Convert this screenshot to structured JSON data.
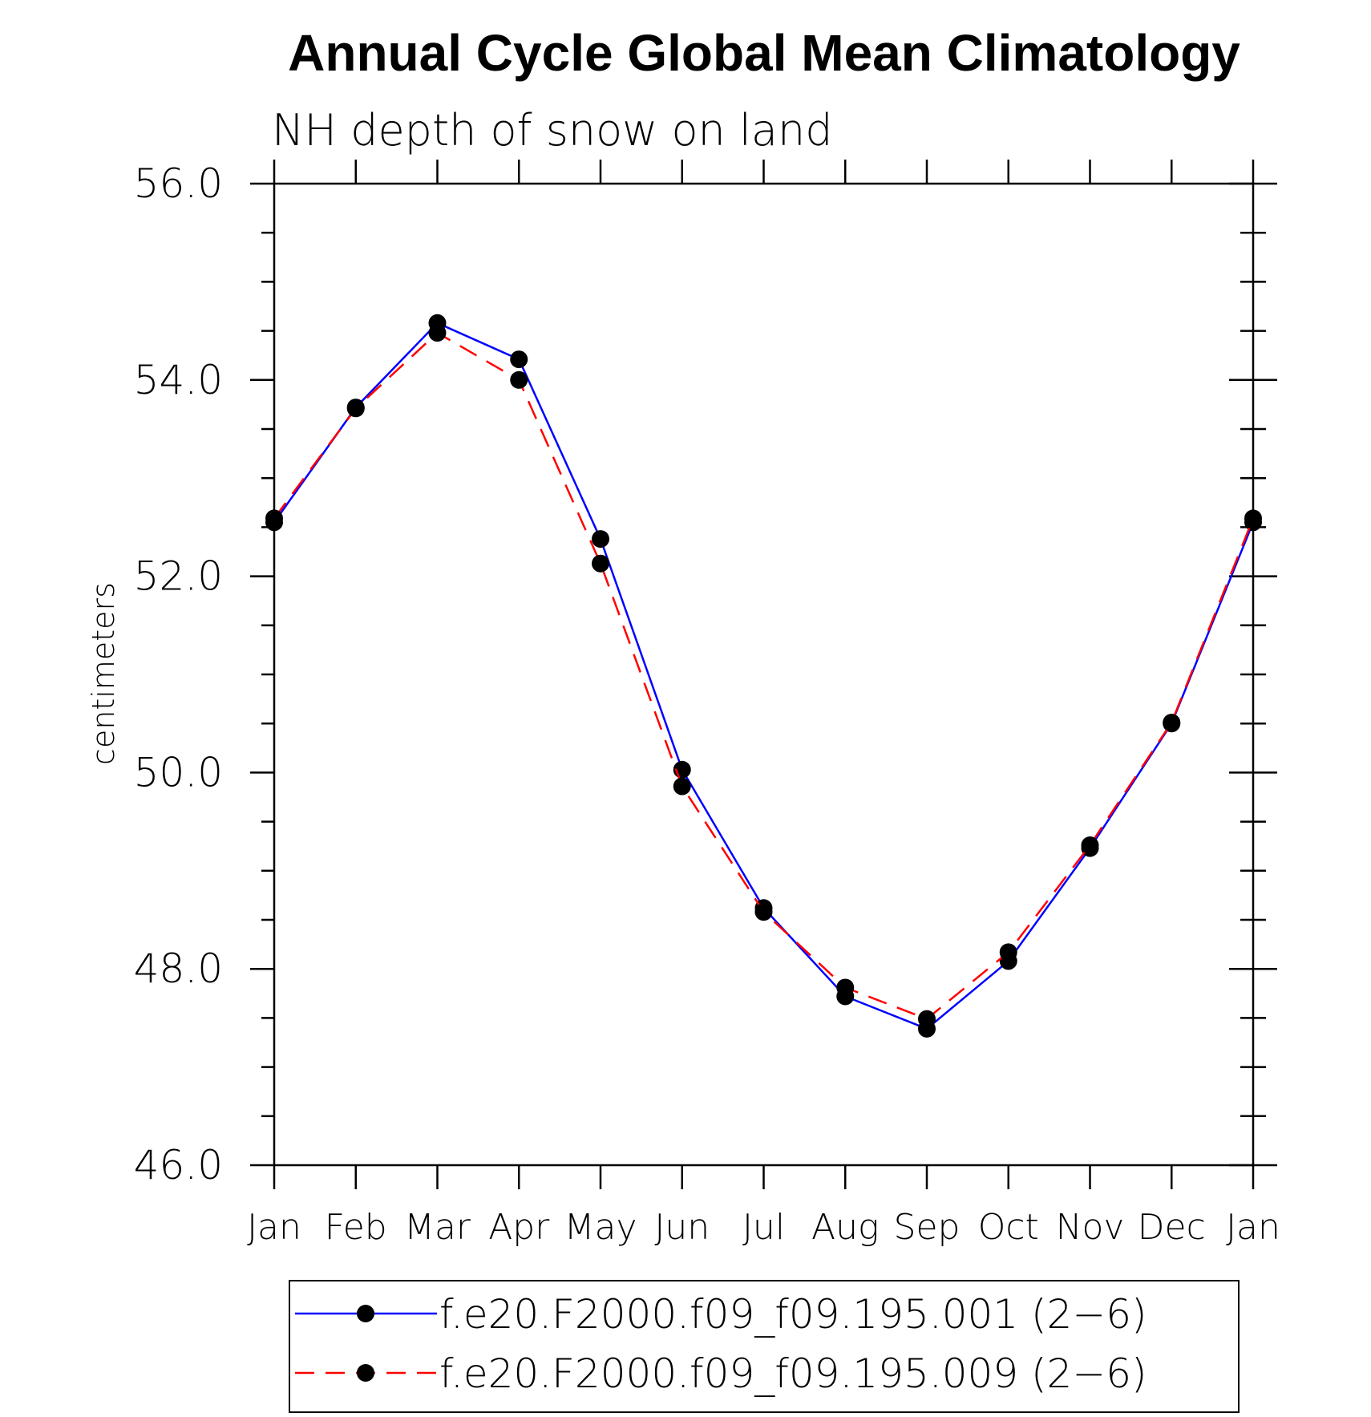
{
  "chart_data": {
    "type": "line",
    "title": "Annual Cycle Global Mean Climatology",
    "subtitle": "NH depth of snow on land",
    "ylabel": "centimeters",
    "xlabel": "",
    "categories": [
      "Jan",
      "Feb",
      "Mar",
      "Apr",
      "May",
      "Jun",
      "Jul",
      "Aug",
      "Sep",
      "Oct",
      "Nov",
      "Dec",
      "Jan"
    ],
    "ylim": [
      46.0,
      56.0
    ],
    "yticks": [
      "46.0",
      "48.0",
      "50.0",
      "52.0",
      "54.0",
      "56.0"
    ],
    "grid": false,
    "legend_position": "bottom",
    "series": [
      {
        "name": "f.e20.F2000.f09_f09.195.001 (2−6)",
        "color": "#0000ff",
        "line_style": "solid",
        "marker": "filled-circle",
        "values": [
          52.55,
          53.72,
          54.58,
          54.21,
          52.38,
          50.03,
          48.62,
          47.72,
          47.39,
          48.08,
          49.23,
          50.5,
          52.55
        ]
      },
      {
        "name": "f.e20.F2000.f09_f09.195.009 (2−6)",
        "color": "#ff0000",
        "line_style": "dashed",
        "marker": "filled-circle",
        "values": [
          52.59,
          53.71,
          54.48,
          54.0,
          52.13,
          49.86,
          48.58,
          47.81,
          47.49,
          48.17,
          49.26,
          50.51,
          52.59
        ]
      }
    ]
  }
}
